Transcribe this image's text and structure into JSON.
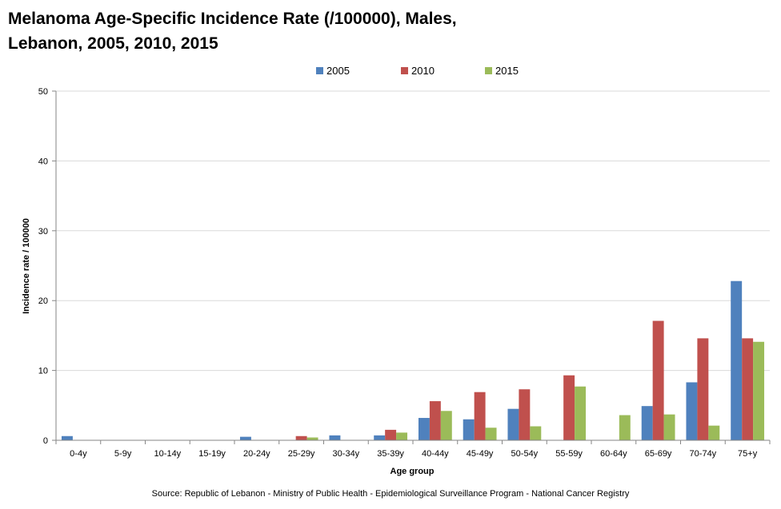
{
  "chart_data": {
    "type": "bar",
    "title_lines": [
      "Melanoma Age-Specific Incidence Rate (/100000), Males,",
      "Lebanon, 2005, 2010, 2015"
    ],
    "xlabel": "Age group",
    "ylabel": "Incidence rate / 100000",
    "ylim": [
      0,
      50
    ],
    "yticks": [
      0,
      10,
      20,
      30,
      40,
      50
    ],
    "grid": true,
    "legend_position": "top-center",
    "categories": [
      "0-4y",
      "5-9y",
      "10-14y",
      "15-19y",
      "20-24y",
      "25-29y",
      "30-34y",
      "35-39y",
      "40-44y",
      "45-49y",
      "50-54y",
      "55-59y",
      "60-64y",
      "65-69y",
      "70-74y",
      "75+y"
    ],
    "series": [
      {
        "name": "2005",
        "color": "#4f81bd",
        "values": [
          0.6,
          0,
          0,
          0,
          0.5,
          0,
          0.7,
          0.7,
          3.2,
          3.0,
          4.5,
          0,
          0,
          4.9,
          8.3,
          22.8
        ]
      },
      {
        "name": "2010",
        "color": "#c0504d",
        "values": [
          0,
          0,
          0,
          0,
          0,
          0.6,
          0,
          1.5,
          5.6,
          6.9,
          7.3,
          9.3,
          0,
          17.1,
          14.6,
          14.6
        ]
      },
      {
        "name": "2015",
        "color": "#9bbb59",
        "values": [
          0,
          0,
          0,
          0,
          0,
          0.4,
          0,
          1.1,
          4.2,
          1.8,
          2.0,
          7.7,
          3.6,
          3.7,
          2.1,
          14.1
        ]
      }
    ],
    "source": "Source: Republic of Lebanon - Ministry of Public Health - Epidemiological Surveillance Program - National Cancer Registry"
  }
}
